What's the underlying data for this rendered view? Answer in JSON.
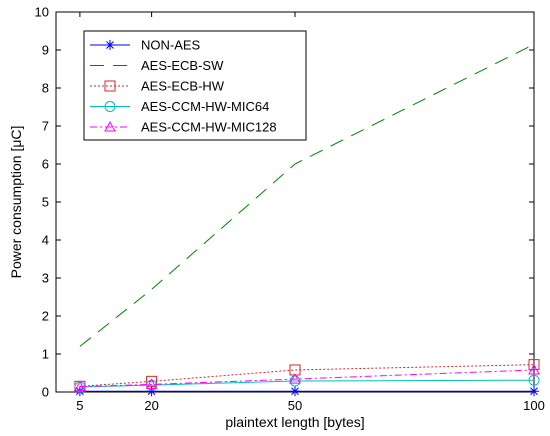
{
  "chart_data": {
    "type": "line",
    "title": "",
    "xlabel": "plaintext length [bytes]",
    "ylabel": "Power consumption [μC]",
    "x": [
      5,
      20,
      50,
      100
    ],
    "xlim": [
      0,
      100
    ],
    "ylim": [
      0,
      10
    ],
    "xticks": [
      "5",
      "20",
      "50",
      "100"
    ],
    "yticks": [
      "0",
      "1",
      "2",
      "3",
      "4",
      "5",
      "6",
      "7",
      "8",
      "9",
      "10"
    ],
    "grid": false,
    "legend_position": "top-left",
    "series": [
      {
        "name": "NON-AES",
        "values": [
          0.02,
          0.02,
          0.02,
          0.02
        ],
        "color": "#0000ff",
        "marker": "star",
        "dash": "solid"
      },
      {
        "name": "AES-ECB-SW",
        "values": [
          1.2,
          2.7,
          6.0,
          9.15
        ],
        "color": "#008000",
        "marker": "none",
        "dash": "long-dash"
      },
      {
        "name": "AES-ECB-HW",
        "values": [
          0.15,
          0.28,
          0.58,
          0.72
        ],
        "color": "#d62728",
        "marker": "square",
        "dash": "dotted"
      },
      {
        "name": "AES-CCM-HW-MIC64",
        "values": [
          0.13,
          0.18,
          0.29,
          0.31
        ],
        "color": "#00bfbf",
        "marker": "circle",
        "dash": "solid"
      },
      {
        "name": "AES-CCM-HW-MIC128",
        "values": [
          0.14,
          0.2,
          0.34,
          0.58
        ],
        "color": "#ff00ff",
        "marker": "triangle",
        "dash": "dashdot"
      }
    ]
  }
}
